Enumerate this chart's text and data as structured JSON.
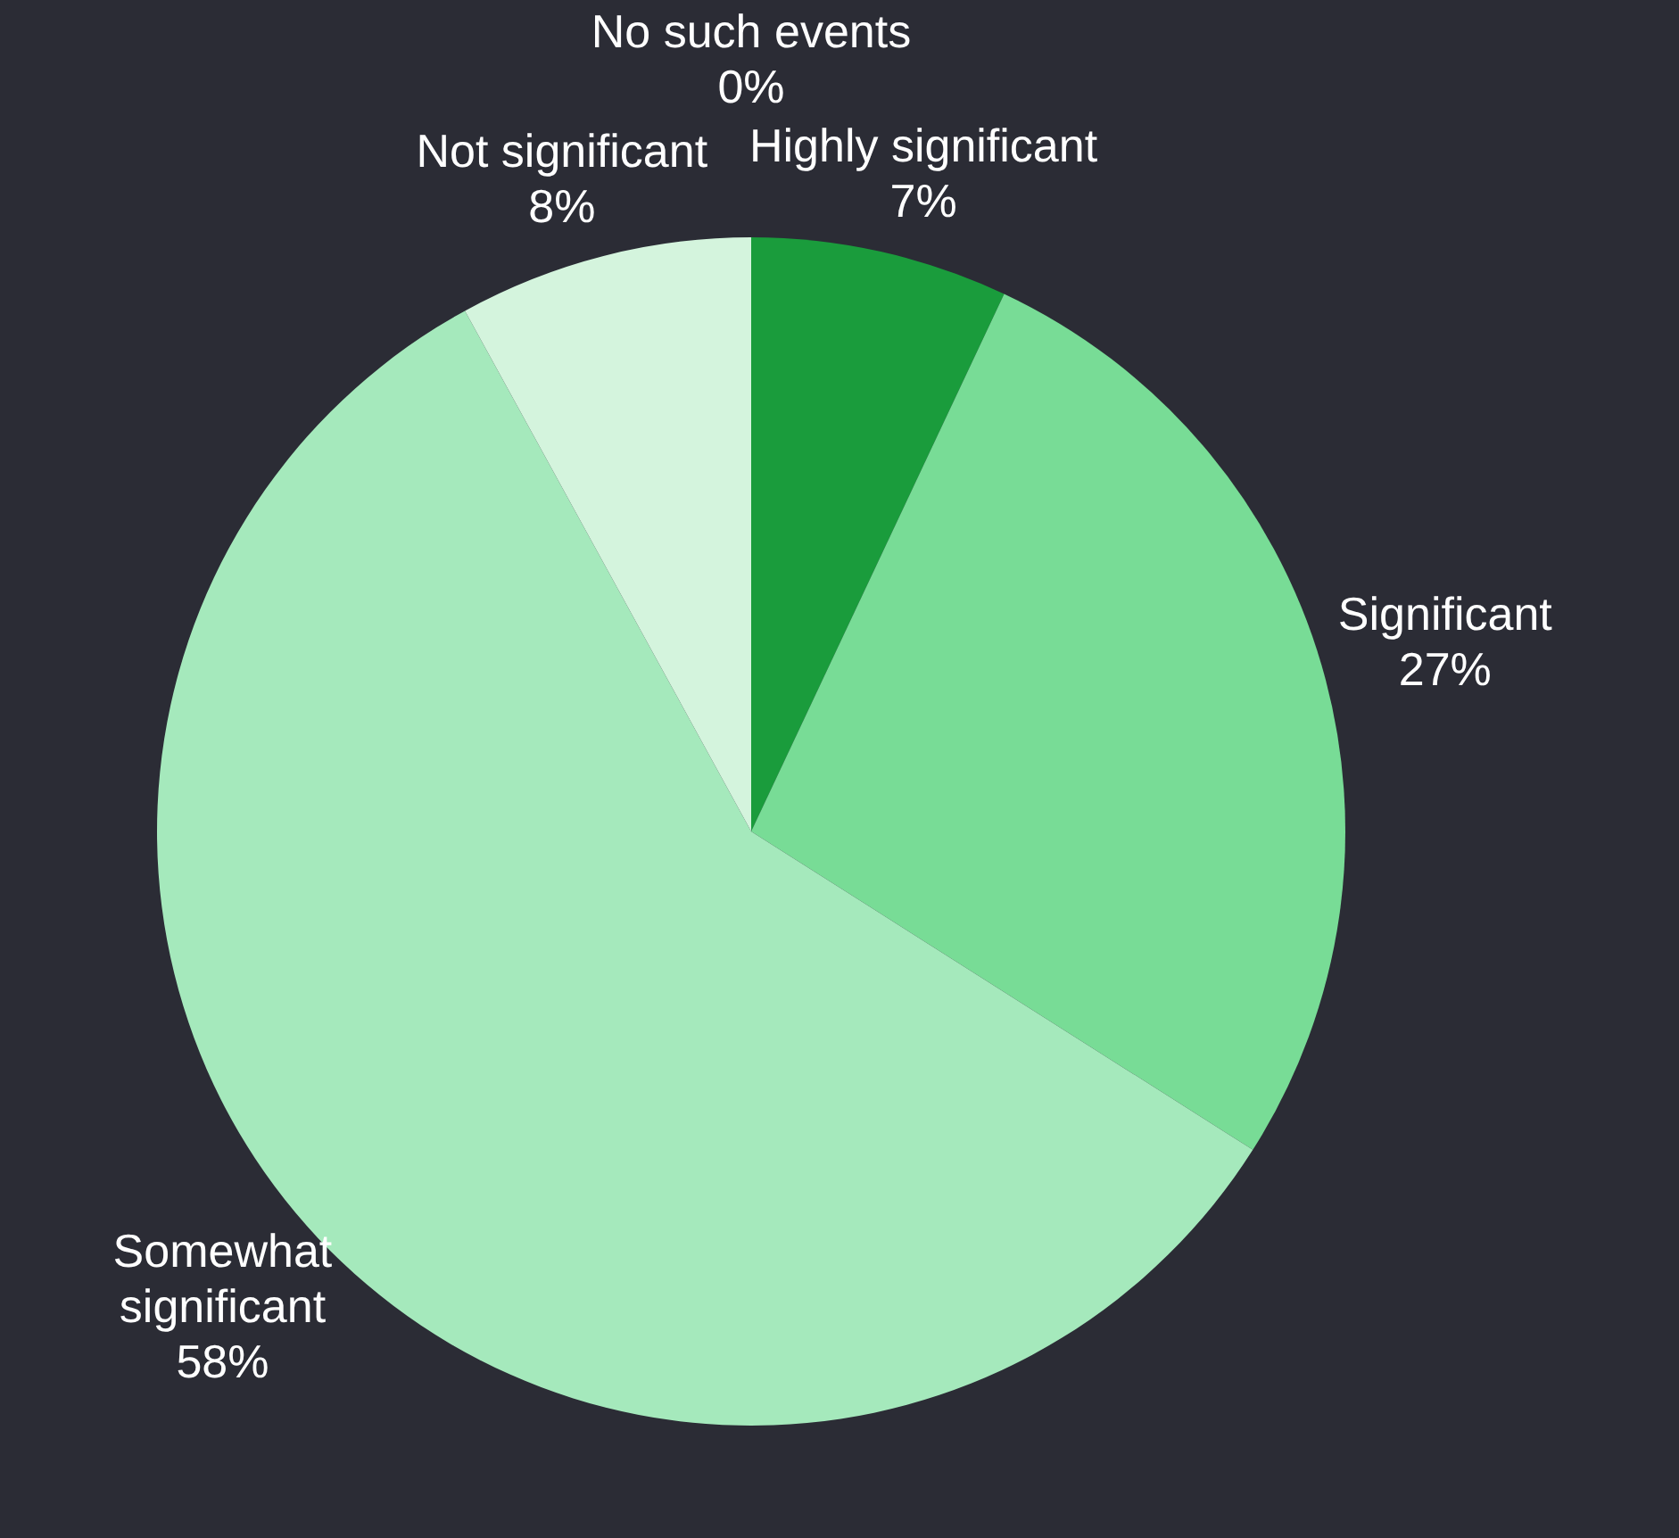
{
  "chart_data": {
    "type": "pie",
    "categories": [
      "Highly significant",
      "Significant",
      "Somewhat significant",
      "Not significant",
      "No such events"
    ],
    "values": [
      7,
      27,
      58,
      8,
      0
    ],
    "value_labels": [
      "7%",
      "27%",
      "58%",
      "8%",
      "0%"
    ],
    "colors": [
      "#1a9c3c",
      "#78dc96",
      "#a5e9bc",
      "#d4f4dd",
      "#e8f8ec"
    ],
    "legend": false
  }
}
